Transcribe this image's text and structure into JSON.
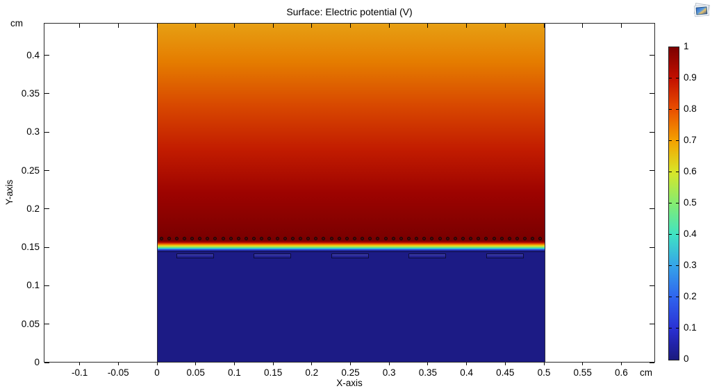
{
  "title": "Surface: Electric potential (V)",
  "window": {
    "background": "#ffffff",
    "toolbar_icon": "plot-snapshot-icon"
  },
  "axes": {
    "x_label": "X-axis",
    "y_label": "Y-axis",
    "x_unit": "cm",
    "y_unit": "cm",
    "x_ticks": [
      "-0.1",
      "-0.05",
      "0",
      "0.05",
      "0.1",
      "0.15",
      "0.2",
      "0.25",
      "0.3",
      "0.35",
      "0.4",
      "0.45",
      "0.5",
      "0.55",
      "0.6"
    ],
    "y_ticks": [
      "0",
      "0.05",
      "0.1",
      "0.15",
      "0.2",
      "0.25",
      "0.3",
      "0.35",
      "0.4"
    ]
  },
  "colorbar": {
    "min": 0,
    "max": 1,
    "ticks": [
      "1",
      "0.9",
      "0.8",
      "0.7",
      "0.6",
      "0.5",
      "0.4",
      "0.3",
      "0.2",
      "0.1",
      "0"
    ],
    "colormap_stops": [
      [
        0,
        "#1b1b7e"
      ],
      [
        0.05,
        "#2223a9"
      ],
      [
        0.1,
        "#2a31d4"
      ],
      [
        0.2,
        "#2f64ee"
      ],
      [
        0.3,
        "#35a3e9"
      ],
      [
        0.4,
        "#3fe3c4"
      ],
      [
        0.5,
        "#84ec71"
      ],
      [
        0.6,
        "#d8e628"
      ],
      [
        0.7,
        "#f4a200"
      ],
      [
        0.8,
        "#ea5000"
      ],
      [
        0.9,
        "#c31000"
      ],
      [
        1,
        "#7c0000"
      ]
    ]
  },
  "chart_data": {
    "type": "heatmap",
    "title": "Surface: Electric potential (V)",
    "xlabel": "X-axis",
    "ylabel": "Y-axis",
    "units": "cm",
    "xlim": [
      -0.145,
      0.645
    ],
    "ylim": [
      0,
      0.442
    ],
    "value_label": "Electric potential (V)",
    "value_range": [
      0,
      1
    ],
    "surface_extent": {
      "x": [
        0,
        0.5
      ],
      "y": [
        0,
        0.442
      ]
    },
    "regions": [
      {
        "name": "lower-electrolyte",
        "y_range": [
          0,
          0.146
        ],
        "potential": 0,
        "color": "#1c1b85"
      },
      {
        "name": "membrane-transition",
        "y_range": [
          0.146,
          0.158
        ],
        "potential_range": [
          1,
          0
        ],
        "gradient": [
          [
            0,
            "#780000"
          ],
          [
            0.12,
            "#a80000"
          ],
          [
            0.28,
            "#e54f00"
          ],
          [
            0.42,
            "#f2ae00"
          ],
          [
            0.52,
            "#e3e431"
          ],
          [
            0.64,
            "#7ee863"
          ],
          [
            0.76,
            "#36d7d8"
          ],
          [
            0.88,
            "#2b55e5"
          ],
          [
            1,
            "#22258e"
          ]
        ]
      },
      {
        "name": "upper-electrolyte",
        "y_range": [
          0.158,
          0.442
        ],
        "potential_range": [
          0.72,
          1
        ],
        "gradient": [
          [
            0,
            "#e7a013"
          ],
          [
            0.18,
            "#e57c00"
          ],
          [
            0.38,
            "#d84800"
          ],
          [
            0.58,
            "#c21c00"
          ],
          [
            0.78,
            "#9d0300"
          ],
          [
            1,
            "#780000"
          ]
        ]
      }
    ],
    "pores": {
      "count": 50,
      "y": 0.161,
      "x_start": 0.0045,
      "x_step": 0.01,
      "diameter": 0.0045,
      "fill": "#4a0b0b",
      "stroke": "#140505"
    },
    "electrodes": {
      "centers_x": [
        0.0485,
        0.1485,
        0.2485,
        0.3485,
        0.4485
      ],
      "width": 0.0485,
      "y_top": 0.142,
      "height": 0.0063,
      "fill": "#232191",
      "stroke": "#0c0c3c"
    },
    "boundary_line": {
      "y": 0.1446,
      "color": "#11104d"
    }
  }
}
